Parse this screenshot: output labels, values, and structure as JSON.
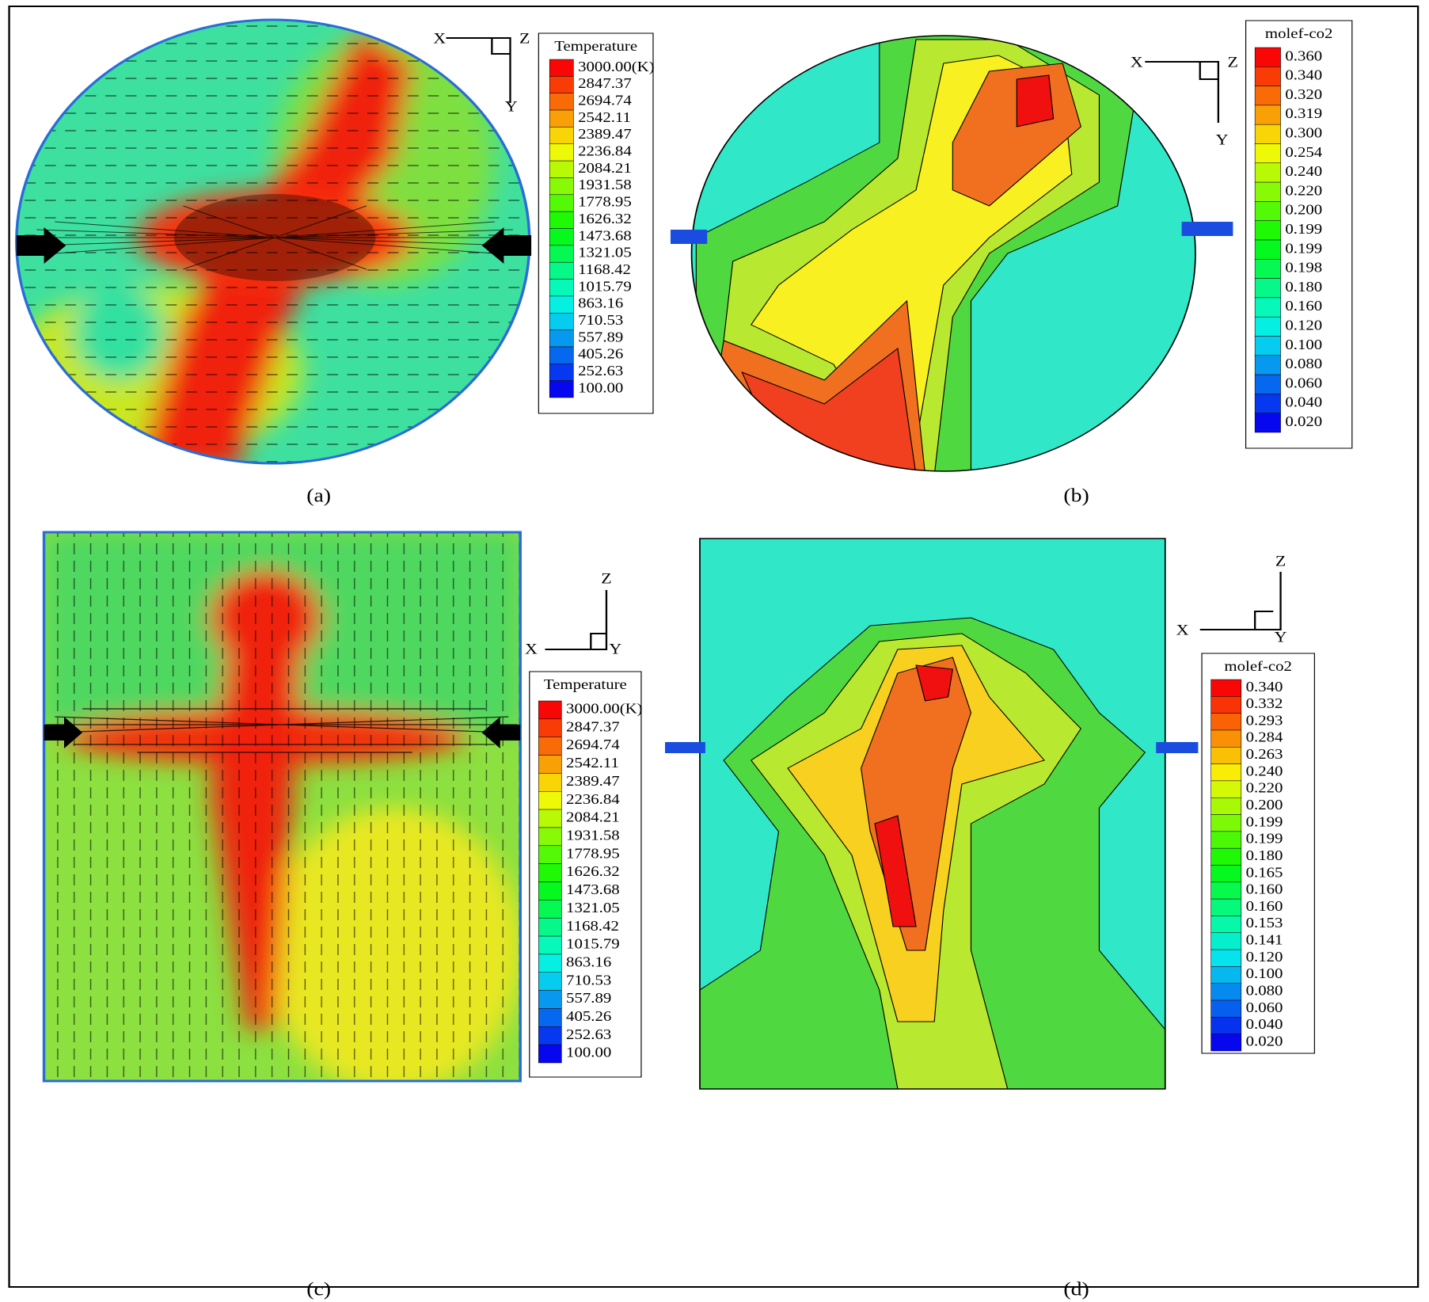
{
  "panels": [
    {
      "caption": "(a)",
      "legend": {
        "title": "Temperature",
        "labels": [
          "3000.00(K)",
          "2847.37",
          "2694.74",
          "2542.11",
          "2389.47",
          "2236.84",
          "2084.21",
          "1931.58",
          "1778.95",
          "1626.32",
          "1473.68",
          "1321.05",
          "1168.42",
          "1015.79",
          "863.16",
          "710.53",
          "557.89",
          "405.26",
          "252.63",
          "100.00"
        ]
      },
      "axes": [
        "X",
        "Z",
        "Y"
      ]
    },
    {
      "caption": "(b)",
      "legend": {
        "title": "molef-co2",
        "labels": [
          "0.360",
          "0.340",
          "0.320",
          "0.319",
          "0.300",
          "0.254",
          "0.240",
          "0.220",
          "0.200",
          "0.199",
          "0.199",
          "0.198",
          "0.180",
          "0.160",
          "0.120",
          "0.100",
          "0.080",
          "0.060",
          "0.040",
          "0.020"
        ]
      },
      "axes": [
        "X",
        "Z",
        "Y"
      ]
    },
    {
      "caption": "(c)",
      "legend": {
        "title": "Temperature",
        "labels": [
          "3000.00(K)",
          "2847.37",
          "2694.74",
          "2542.11",
          "2389.47",
          "2236.84",
          "2084.21",
          "1931.58",
          "1778.95",
          "1626.32",
          "1473.68",
          "1321.05",
          "1168.42",
          "1015.79",
          "863.16",
          "710.53",
          "557.89",
          "405.26",
          "252.63",
          "100.00"
        ]
      },
      "axes": [
        "Z",
        "X",
        "Y"
      ]
    },
    {
      "caption": "(d)",
      "legend": {
        "title": "molef-co2",
        "labels": [
          "0.340",
          "0.332",
          "0.293",
          "0.284",
          "0.263",
          "0.240",
          "0.220",
          "0.200",
          "0.199",
          "0.199",
          "0.180",
          "0.165",
          "0.160",
          "0.160",
          "0.153",
          "0.141",
          "0.120",
          "0.100",
          "0.080",
          "0.060",
          "0.040",
          "0.020"
        ]
      },
      "axes": [
        "Z",
        "X",
        "Y"
      ]
    }
  ]
}
